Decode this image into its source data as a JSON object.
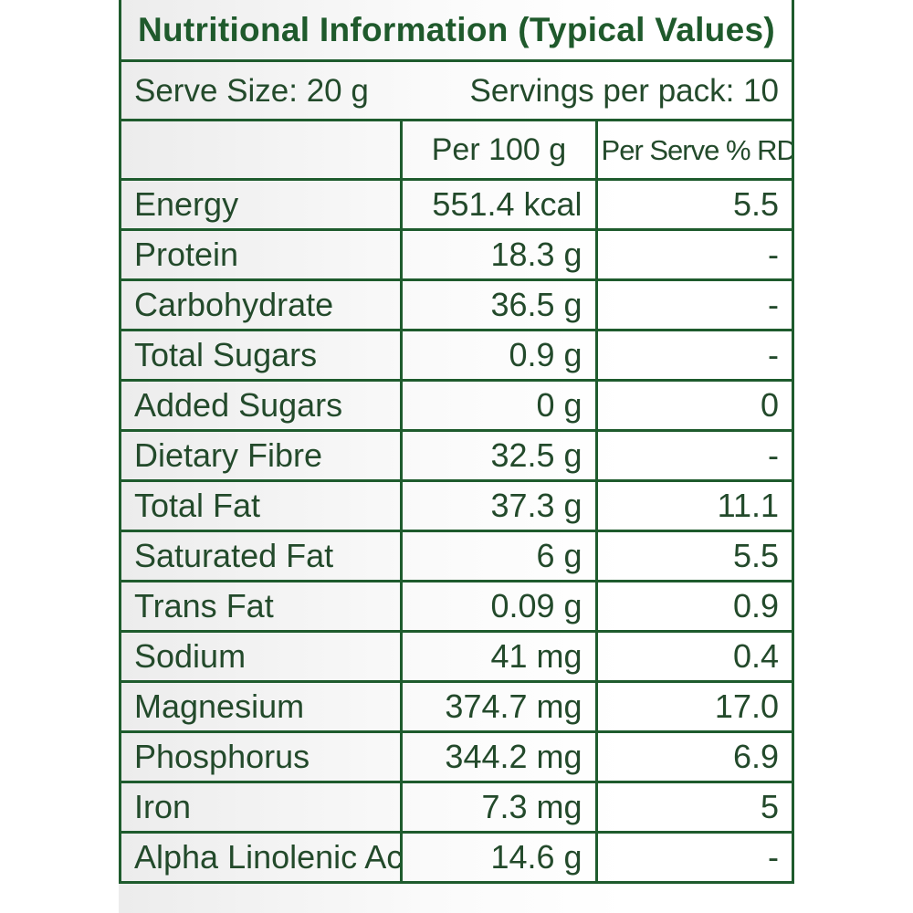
{
  "label": {
    "title": "Nutritional Information (Typical Values)",
    "serve_size": "Serve Size: 20 g",
    "servings_per_pack": "Servings per pack: 10",
    "headers": {
      "nutrient": "",
      "per_100g": "Per 100 g",
      "per_serve_rda": "Per Serve % RDA"
    },
    "rows": [
      {
        "name": "Energy",
        "per_100g": "551.4 kcal",
        "rda": "5.5"
      },
      {
        "name": "Protein",
        "per_100g": "18.3 g",
        "rda": "-"
      },
      {
        "name": "Carbohydrate",
        "per_100g": "36.5 g",
        "rda": "-"
      },
      {
        "name": "Total Sugars",
        "per_100g": "0.9 g",
        "rda": "-"
      },
      {
        "name": "Added Sugars",
        "per_100g": "0 g",
        "rda": "0"
      },
      {
        "name": "Dietary Fibre",
        "per_100g": "32.5 g",
        "rda": "-"
      },
      {
        "name": "Total Fat",
        "per_100g": "37.3 g",
        "rda": "11.1"
      },
      {
        "name": "Saturated Fat",
        "per_100g": "6 g",
        "rda": "5.5"
      },
      {
        "name": "Trans Fat",
        "per_100g": "0.09 g",
        "rda": "0.9"
      },
      {
        "name": "Sodium",
        "per_100g": "41 mg",
        "rda": "0.4"
      },
      {
        "name": "Magnesium",
        "per_100g": "374.7 mg",
        "rda": "17.0"
      },
      {
        "name": "Phosphorus",
        "per_100g": "344.2 mg",
        "rda": "6.9"
      },
      {
        "name": "Iron",
        "per_100g": "7.3 mg",
        "rda": "5"
      },
      {
        "name": "Alpha Linolenic Acid",
        "per_100g": "14.6 g",
        "rda": "-"
      }
    ],
    "colors": {
      "border": "#1e5b2d",
      "text": "#234a2b",
      "title": "#1f5a2c"
    }
  }
}
